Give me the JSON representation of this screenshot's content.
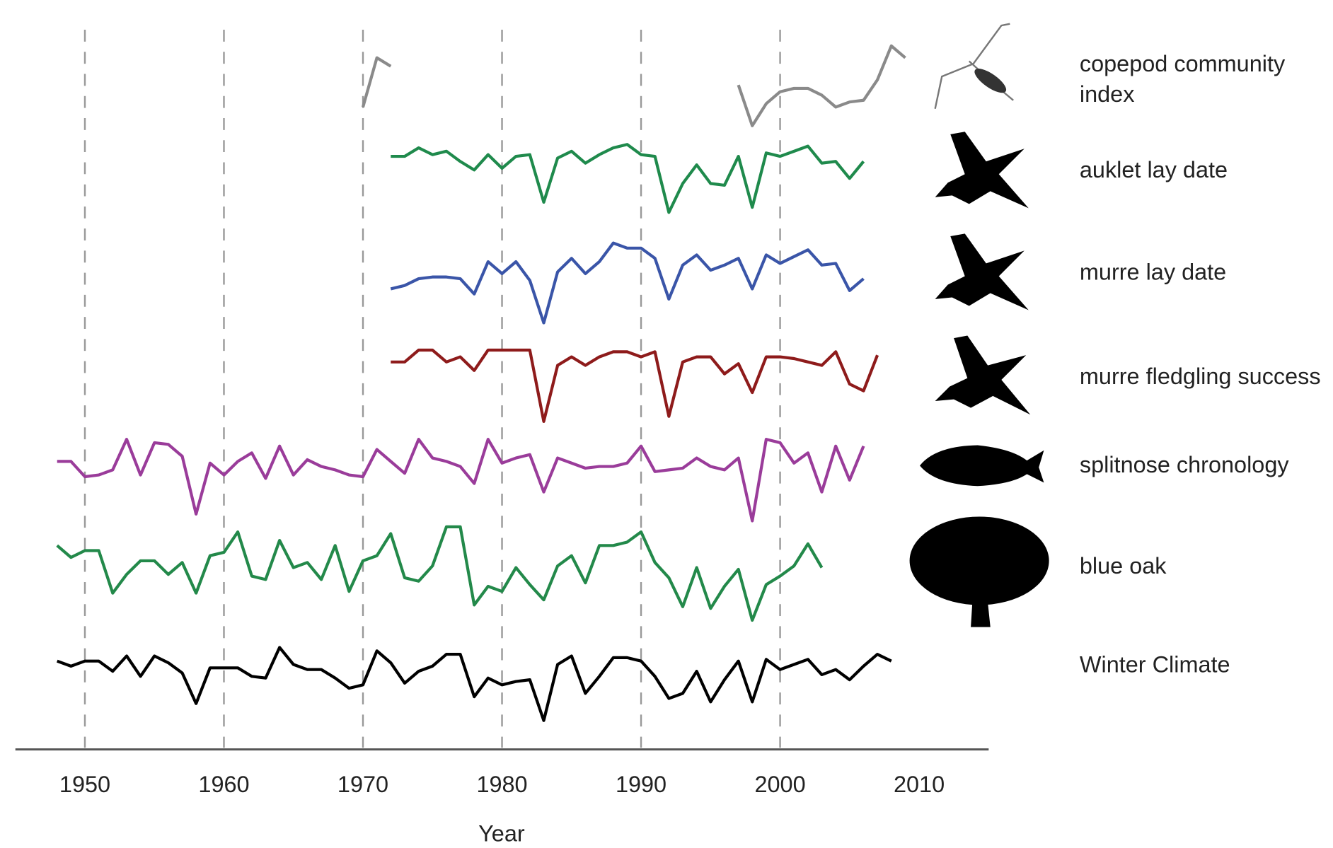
{
  "chart_data": {
    "type": "line",
    "x_label": "Year",
    "x": [
      1948,
      1949,
      1950,
      1951,
      1952,
      1953,
      1954,
      1955,
      1956,
      1957,
      1958,
      1959,
      1960,
      1961,
      1962,
      1963,
      1964,
      1965,
      1966,
      1967,
      1968,
      1969,
      1970,
      1971,
      1972,
      1973,
      1974,
      1975,
      1976,
      1977,
      1978,
      1979,
      1980,
      1981,
      1982,
      1983,
      1984,
      1985,
      1986,
      1987,
      1988,
      1989,
      1990,
      1991,
      1992,
      1993,
      1994,
      1995,
      1996,
      1997,
      1998,
      1999,
      2000,
      2001,
      2002,
      2003,
      2004,
      2005,
      2006,
      2007,
      2008,
      2009
    ],
    "xlim": [
      1945,
      2015
    ],
    "xticks": [
      1950,
      1960,
      1970,
      1980,
      1990,
      2000,
      2010
    ],
    "grid": true,
    "ylim": [
      -4,
      3
    ],
    "series": [
      {
        "name": "copepod community index",
        "color": "#8a8a8a",
        "values": [
          null,
          null,
          null,
          null,
          null,
          null,
          null,
          null,
          null,
          null,
          null,
          null,
          null,
          null,
          null,
          null,
          null,
          null,
          null,
          null,
          null,
          null,
          -0.8,
          2.1,
          1.6,
          null,
          null,
          null,
          null,
          null,
          null,
          null,
          null,
          null,
          null,
          null,
          null,
          null,
          null,
          null,
          null,
          null,
          null,
          null,
          null,
          null,
          null,
          null,
          null,
          0.5,
          -1.9,
          -0.6,
          0.1,
          0.3,
          0.3,
          -0.1,
          -0.8,
          -0.5,
          -0.4,
          0.8,
          2.8,
          2.1
        ]
      },
      {
        "name": "auklet lay date",
        "color": "#1f8a4c",
        "values": [
          null,
          null,
          null,
          null,
          null,
          null,
          null,
          null,
          null,
          null,
          null,
          null,
          null,
          null,
          null,
          null,
          null,
          null,
          null,
          null,
          null,
          null,
          null,
          null,
          0.3,
          0.3,
          0.8,
          0.4,
          0.6,
          0,
          -0.5,
          0.4,
          -0.4,
          0.3,
          0.4,
          -2.4,
          0.2,
          0.6,
          -0.1,
          0.4,
          0.8,
          1,
          0.4,
          0.3,
          -3,
          -1.3,
          -0.2,
          -1.3,
          -1.4,
          0.3,
          -2.7,
          0.5,
          0.3,
          0.6,
          0.9,
          -0.1,
          0,
          -1,
          0,
          null,
          null,
          null
        ]
      },
      {
        "name": "murre lay date",
        "color": "#3a55a8",
        "values": [
          null,
          null,
          null,
          null,
          null,
          null,
          null,
          null,
          null,
          null,
          null,
          null,
          null,
          null,
          null,
          null,
          null,
          null,
          null,
          null,
          null,
          null,
          null,
          null,
          -1,
          -0.8,
          -0.4,
          -0.3,
          -0.3,
          -0.4,
          -1.3,
          0.6,
          -0.1,
          0.6,
          -0.5,
          -3,
          0,
          0.8,
          -0.1,
          0.6,
          1.7,
          1.4,
          1.4,
          0.8,
          -1.6,
          0.4,
          1,
          0.1,
          0.4,
          0.8,
          -1,
          1,
          0.5,
          0.9,
          1.3,
          0.4,
          0.5,
          -1.1,
          -0.4,
          null,
          null,
          null
        ]
      },
      {
        "name": "murre fledgling success",
        "color": "#8e1b1b",
        "values": [
          null,
          null,
          null,
          null,
          null,
          null,
          null,
          null,
          null,
          null,
          null,
          null,
          null,
          null,
          null,
          null,
          null,
          null,
          null,
          null,
          null,
          null,
          null,
          null,
          -0.3,
          -0.3,
          0.4,
          0.4,
          -0.3,
          0,
          -0.8,
          0.4,
          0.4,
          0.4,
          0.4,
          -3.8,
          -0.5,
          0,
          -0.5,
          0,
          0.3,
          0.3,
          0,
          0.3,
          -3.5,
          -0.3,
          0,
          0,
          -1,
          -0.4,
          -2.1,
          0,
          0,
          -0.1,
          -0.3,
          -0.5,
          0.3,
          -1.6,
          -2,
          0.1,
          null,
          null
        ]
      },
      {
        "name": "splitnose chronology",
        "color": "#9a3c9a",
        "values": [
          0.1,
          0.1,
          -0.8,
          -0.7,
          -0.4,
          1.4,
          -0.7,
          1.2,
          1.1,
          0.4,
          -3,
          0,
          -0.7,
          0.1,
          0.6,
          -0.9,
          1,
          -0.7,
          0.2,
          -0.2,
          -0.4,
          -0.7,
          -0.8,
          0.8,
          0.1,
          -0.6,
          1.4,
          0.3,
          0.1,
          -0.2,
          -1.2,
          1.4,
          0,
          0.3,
          0.5,
          -1.7,
          0.3,
          0,
          -0.3,
          -0.2,
          -0.2,
          0,
          1,
          -0.5,
          -0.4,
          -0.3,
          0.3,
          -0.2,
          -0.4,
          0.3,
          -3.4,
          1.4,
          1.2,
          0,
          0.6,
          -1.7,
          1,
          -1,
          1,
          null,
          null,
          null
        ]
      },
      {
        "name": "blue oak",
        "color": "#23894a",
        "values": [
          0.9,
          0.2,
          0.6,
          0.6,
          -1.9,
          -0.8,
          0,
          0,
          -0.8,
          -0.1,
          -1.9,
          0.3,
          0.5,
          1.7,
          -0.9,
          -1.1,
          1.2,
          -0.4,
          -0.1,
          -1.1,
          0.9,
          -1.8,
          0,
          0.3,
          1.6,
          -1,
          -1.2,
          -0.3,
          2,
          2,
          -2.6,
          -1.5,
          -1.8,
          -0.4,
          -1.4,
          -2.3,
          -0.3,
          0.3,
          -1.3,
          0.9,
          0.9,
          1.1,
          1.7,
          -0.1,
          -1,
          -2.7,
          -0.4,
          -2.8,
          -1.5,
          -0.5,
          -3.5,
          -1.4,
          -0.9,
          -0.3,
          1,
          -0.4,
          null,
          null,
          null,
          null,
          null,
          null
        ]
      },
      {
        "name": "Winter Climate",
        "color": "#000000",
        "values": [
          0.1,
          -0.2,
          0.1,
          0.1,
          -0.5,
          0.4,
          -0.8,
          0.4,
          0,
          -0.6,
          -2.4,
          -0.3,
          -0.3,
          -0.3,
          -0.8,
          -0.9,
          0.9,
          -0.1,
          -0.4,
          -0.4,
          -0.9,
          -1.5,
          -1.3,
          0.7,
          0,
          -1.2,
          -0.5,
          -0.2,
          0.5,
          0.5,
          -2,
          -0.9,
          -1.3,
          -1.1,
          -1,
          -3.4,
          -0.1,
          0.4,
          -1.8,
          -0.8,
          0.3,
          0.3,
          0.1,
          -0.8,
          -2.1,
          -1.8,
          -0.5,
          -2.3,
          -1,
          0.1,
          -2.3,
          0.2,
          -0.4,
          -0.1,
          0.2,
          -0.7,
          -0.4,
          -1,
          -0.2,
          0.5,
          0.1,
          null
        ]
      }
    ]
  }
}
